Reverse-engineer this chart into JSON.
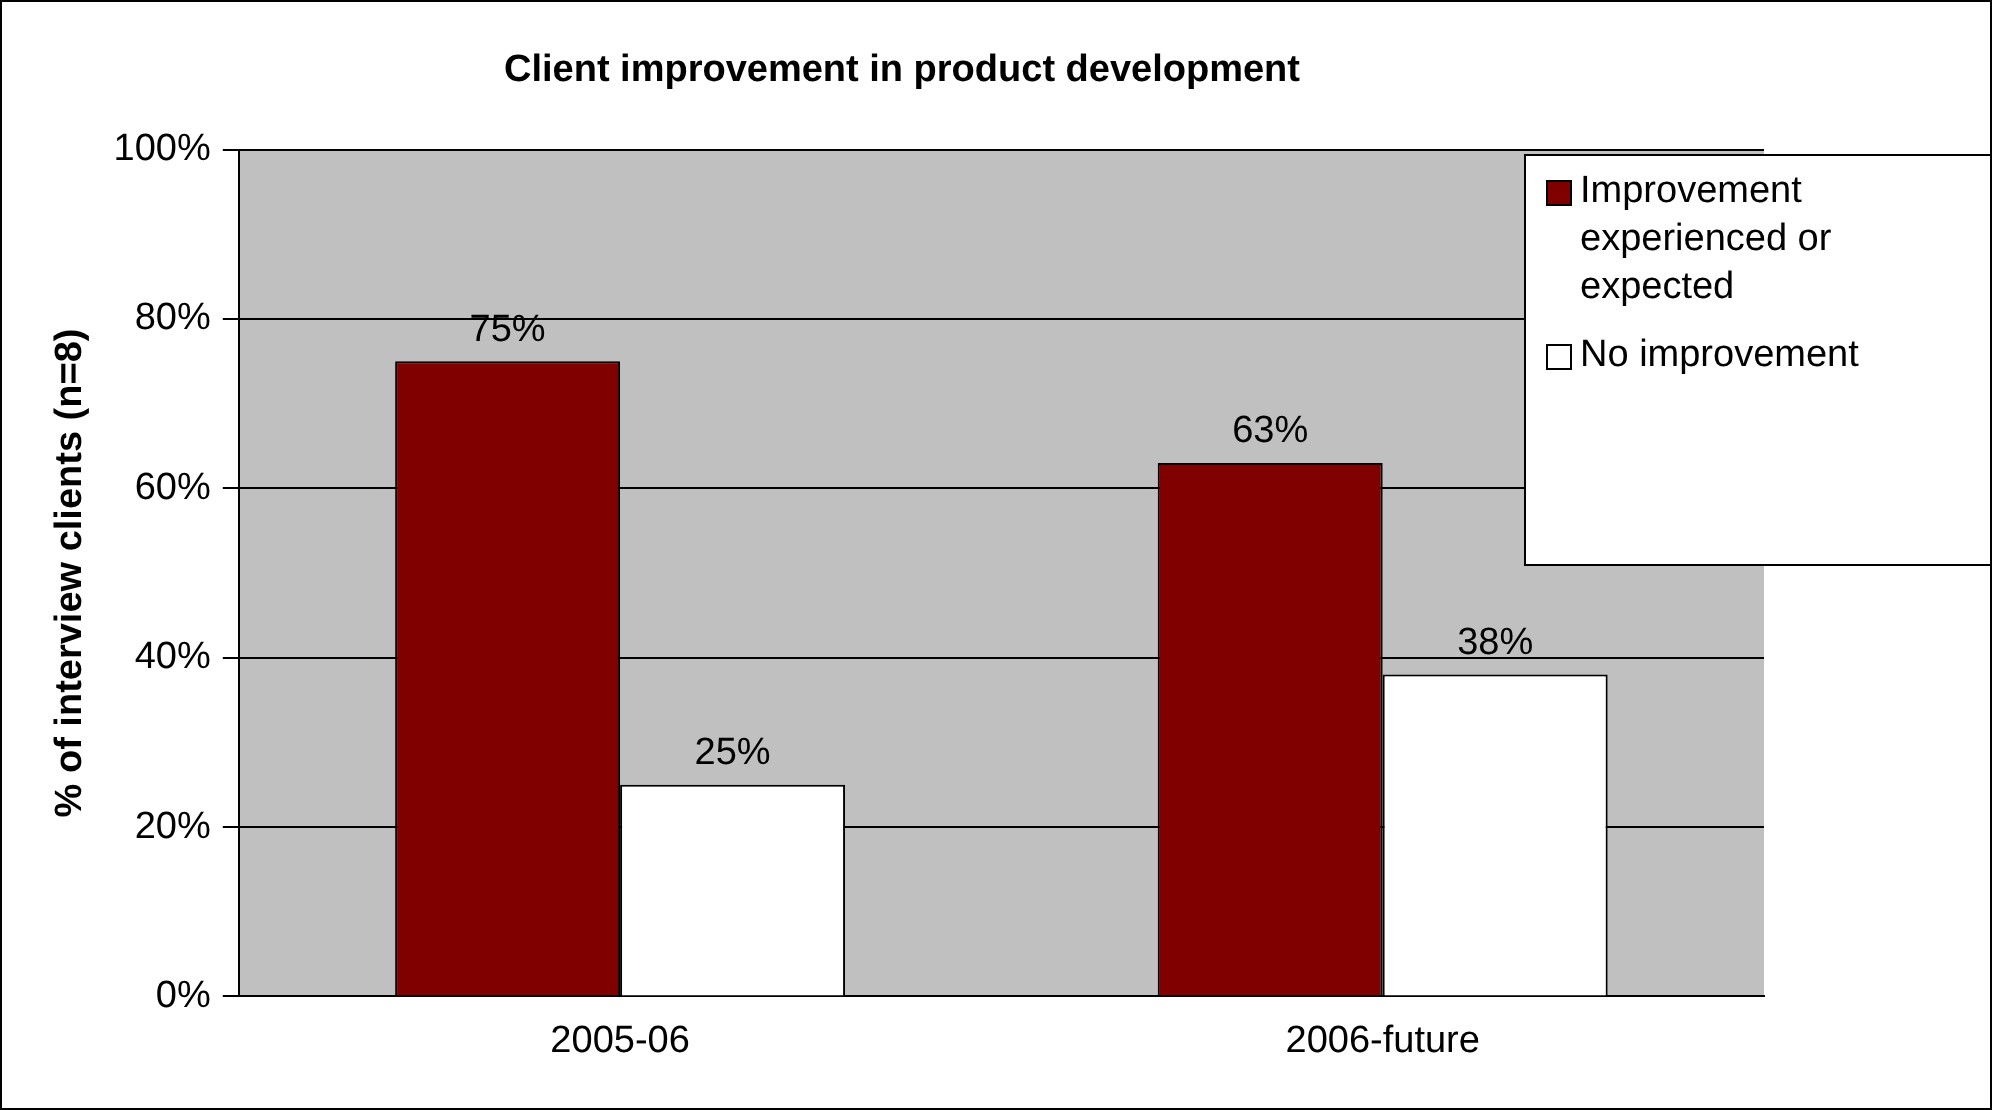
{
  "chart_data": {
    "type": "bar",
    "title": "Client improvement in product development",
    "ylabel": "% of interview clients (n=8)",
    "categories": [
      "2005-06",
      "2006-future"
    ],
    "series": [
      {
        "name": "Improvement experienced or expected",
        "color": "#800000",
        "values": [
          75,
          63
        ],
        "value_labels": [
          "75%",
          "63%"
        ]
      },
      {
        "name": "No improvement",
        "color": "#ffffff",
        "values": [
          25,
          38
        ],
        "value_labels": [
          "25%",
          "38%"
        ]
      }
    ],
    "ylim": [
      0,
      100
    ],
    "yticks": [
      {
        "value": 0,
        "label": "0%"
      },
      {
        "value": 20,
        "label": "20%"
      },
      {
        "value": 40,
        "label": "40%"
      },
      {
        "value": 60,
        "label": "60%"
      },
      {
        "value": 80,
        "label": "80%"
      },
      {
        "value": 100,
        "label": "100%"
      }
    ],
    "grid": "y",
    "legend": "top right"
  }
}
